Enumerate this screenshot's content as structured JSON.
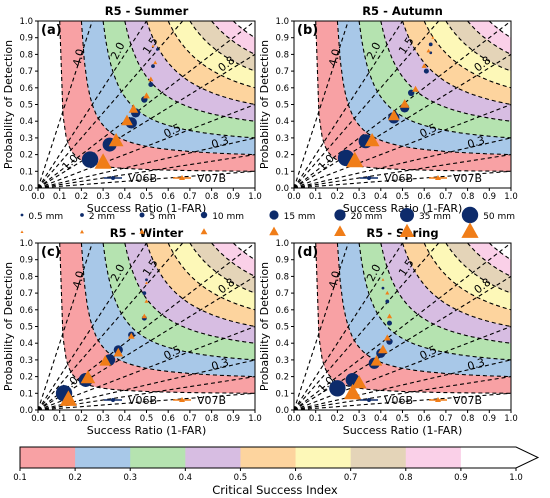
{
  "figure": {
    "colorbar": {
      "label": "Critical Success Index",
      "ticks": [
        "0.1",
        "0.2",
        "0.3",
        "0.4",
        "0.5",
        "0.6",
        "0.7",
        "0.8",
        "0.9",
        "1.0"
      ],
      "colors": [
        "#f8a1a4",
        "#a8c8e8",
        "#b5e3b0",
        "#d7bde2",
        "#fdd49e",
        "#fdf8b8",
        "#e4d4b8",
        "#fad0e8"
      ]
    },
    "size_legend": {
      "items": [
        {
          "label": "0.5 mm"
        },
        {
          "label": "2 mm"
        },
        {
          "label": "5 mm"
        },
        {
          "label": "10 mm"
        },
        {
          "label": "15 mm"
        },
        {
          "label": "20 mm"
        },
        {
          "label": "35 mm"
        },
        {
          "label": "50 mm"
        }
      ]
    },
    "colors": {
      "V06B": "#0d2b6b",
      "V07B": "#f07d18"
    }
  },
  "chart_data": [
    {
      "type": "scatter",
      "panel_label": "(a)",
      "title": "R5 - Summer",
      "xlabel": "Success Ratio (1-FAR)",
      "ylabel": "Probability of Detection",
      "xlim": [
        0,
        1
      ],
      "ylim": [
        0,
        1
      ],
      "x_ticks": [
        "0.0",
        "0.1",
        "0.2",
        "0.3",
        "0.4",
        "0.5",
        "0.6",
        "0.7",
        "0.8",
        "0.9",
        "1.0"
      ],
      "y_ticks": [
        "0.0",
        "0.1",
        "0.2",
        "0.3",
        "0.4",
        "0.5",
        "0.6",
        "0.7",
        "0.8",
        "0.9",
        "1.0"
      ],
      "bias_labels": [
        "4.0",
        "2.0",
        "1.5",
        "1.0",
        "0.8",
        "0.5",
        "0.3"
      ],
      "legend": [
        "V06B",
        "V07B"
      ],
      "legend_position": "lower-right",
      "series": [
        {
          "name": "V06B",
          "marker": "circle",
          "x": [
            0.55,
            0.53,
            0.52,
            0.49,
            0.45,
            0.43,
            0.33,
            0.24
          ],
          "y": [
            0.83,
            0.73,
            0.62,
            0.53,
            0.45,
            0.39,
            0.26,
            0.17
          ]
        },
        {
          "name": "V07B",
          "marker": "triangle",
          "x": [
            0.53,
            0.54,
            0.52,
            0.5,
            0.44,
            0.41,
            0.36,
            0.3
          ],
          "y": [
            0.85,
            0.75,
            0.65,
            0.55,
            0.47,
            0.4,
            0.28,
            0.15
          ]
        }
      ]
    },
    {
      "type": "scatter",
      "panel_label": "(b)",
      "title": "R5 - Autumn",
      "xlabel": "Success Ratio (1-FAR)",
      "ylabel": "Probability of Detection",
      "xlim": [
        0,
        1
      ],
      "ylim": [
        0,
        1
      ],
      "x_ticks": [
        "0.0",
        "0.1",
        "0.2",
        "0.3",
        "0.4",
        "0.5",
        "0.6",
        "0.7",
        "0.8",
        "0.9",
        "1.0"
      ],
      "y_ticks": [
        "0.0",
        "0.1",
        "0.2",
        "0.3",
        "0.4",
        "0.5",
        "0.6",
        "0.7",
        "0.8",
        "0.9",
        "1.0"
      ],
      "bias_labels": [
        "4.0",
        "2.0",
        "1.5",
        "1.0",
        "0.8",
        "0.5",
        "0.3"
      ],
      "legend": [
        "V06B",
        "V07B"
      ],
      "legend_position": "lower-right",
      "series": [
        {
          "name": "V06B",
          "marker": "circle",
          "x": [
            0.63,
            0.63,
            0.61,
            0.54,
            0.51,
            0.46,
            0.33,
            0.24
          ],
          "y": [
            0.81,
            0.86,
            0.7,
            0.57,
            0.48,
            0.42,
            0.28,
            0.18
          ]
        },
        {
          "name": "V07B",
          "marker": "triangle",
          "x": [
            0.64,
            0.62,
            0.6,
            0.56,
            0.51,
            0.46,
            0.36,
            0.28
          ],
          "y": [
            0.9,
            0.82,
            0.73,
            0.59,
            0.5,
            0.43,
            0.28,
            0.16
          ]
        }
      ]
    },
    {
      "type": "scatter",
      "panel_label": "(c)",
      "title": "R5 - Winter",
      "xlabel": "Success Ratio (1-FAR)",
      "ylabel": "Probability of Detection",
      "xlim": [
        0,
        1
      ],
      "ylim": [
        0,
        1
      ],
      "x_ticks": [
        "0.0",
        "0.1",
        "0.2",
        "0.3",
        "0.4",
        "0.5",
        "0.6",
        "0.7",
        "0.8",
        "0.9",
        "1.0"
      ],
      "y_ticks": [
        "0.0",
        "0.1",
        "0.2",
        "0.3",
        "0.4",
        "0.5",
        "0.6",
        "0.7",
        "0.8",
        "0.9",
        "1.0"
      ],
      "bias_labels": [
        "4.0",
        "2.0",
        "1.5",
        "1.0",
        "0.8",
        "0.5",
        "0.3"
      ],
      "legend": [
        "V06B",
        "V07B"
      ],
      "legend_position": "lower-right",
      "series": [
        {
          "name": "V06B",
          "marker": "circle",
          "x": [
            0.5,
            0.49,
            0.49,
            0.43,
            0.37,
            0.33,
            0.22,
            0.12
          ],
          "y": [
            0.78,
            0.7,
            0.55,
            0.45,
            0.36,
            0.3,
            0.18,
            0.1
          ]
        },
        {
          "name": "V07B",
          "marker": "triangle",
          "x": [
            0.5,
            0.5,
            0.49,
            0.43,
            0.37,
            0.31,
            0.23,
            0.14
          ],
          "y": [
            0.76,
            0.65,
            0.56,
            0.44,
            0.34,
            0.29,
            0.19,
            0.06
          ]
        }
      ]
    },
    {
      "type": "scatter",
      "panel_label": "(d)",
      "title": "R5 - Spring",
      "xlabel": "Success Ratio (1-FAR)",
      "ylabel": "Probability of Detection",
      "xlim": [
        0,
        1
      ],
      "ylim": [
        0,
        1
      ],
      "x_ticks": [
        "0.0",
        "0.1",
        "0.2",
        "0.3",
        "0.4",
        "0.5",
        "0.6",
        "0.7",
        "0.8",
        "0.9",
        "1.0"
      ],
      "y_ticks": [
        "0.0",
        "0.1",
        "0.2",
        "0.3",
        "0.4",
        "0.5",
        "0.6",
        "0.7",
        "0.8",
        "0.9",
        "1.0"
      ],
      "bias_labels": [
        "4.0",
        "2.0",
        "1.5",
        "1.0",
        "0.8",
        "0.5",
        "0.3"
      ],
      "legend": [
        "V06B",
        "V07B"
      ],
      "legend_position": "lower-right",
      "series": [
        {
          "name": "V06B",
          "marker": "circle",
          "x": [
            0.41,
            0.43,
            0.44,
            0.44,
            0.4,
            0.37,
            0.27,
            0.2
          ],
          "y": [
            0.73,
            0.65,
            0.52,
            0.41,
            0.34,
            0.28,
            0.18,
            0.13
          ]
        },
        {
          "name": "V07B",
          "marker": "triangle",
          "x": [
            0.41,
            0.43,
            0.44,
            0.43,
            0.41,
            0.38,
            0.3,
            0.27
          ],
          "y": [
            0.78,
            0.7,
            0.56,
            0.43,
            0.36,
            0.29,
            0.16,
            0.1
          ]
        }
      ]
    }
  ]
}
